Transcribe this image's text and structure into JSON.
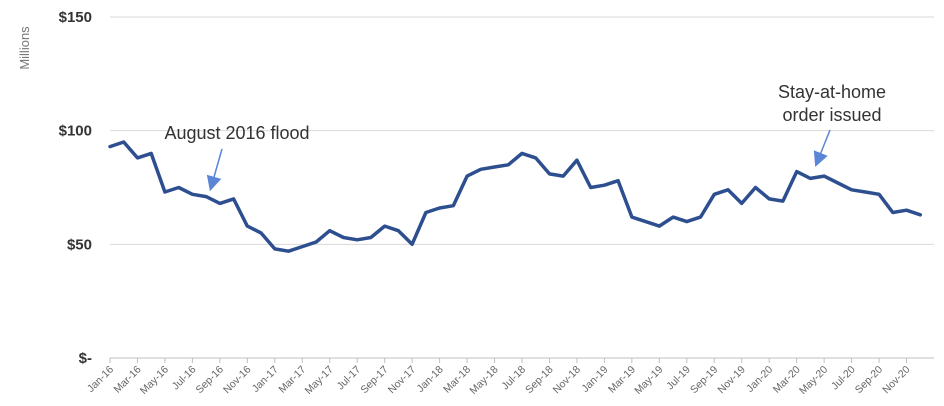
{
  "chart_data": {
    "type": "line",
    "ylabel": "Millions",
    "ylim": [
      0,
      150
    ],
    "y_ticks": [
      {
        "value": 150,
        "label": "$150"
      },
      {
        "value": 100,
        "label": "$100"
      },
      {
        "value": 50,
        "label": "$50"
      },
      {
        "value": 0,
        "label": "$-"
      }
    ],
    "x_tick_labels": [
      "Jan-16",
      "Mar-16",
      "May-16",
      "Jul-16",
      "Sep-16",
      "Nov-16",
      "Jan-17",
      "Mar-17",
      "May-17",
      "Jul-17",
      "Sep-17",
      "Nov-17",
      "Jan-18",
      "Mar-18",
      "May-18",
      "Jul-18",
      "Sep-18",
      "Nov-18",
      "Jan-19",
      "Mar-19",
      "May-19",
      "Jul-19",
      "Sep-19",
      "Nov-19",
      "Jan-20",
      "Mar-20",
      "May-20",
      "Jul-20",
      "Sep-20",
      "Nov-20"
    ],
    "grid": true,
    "series_color": "#2e4f8f",
    "series": [
      {
        "x": [
          "Jan-16",
          "Feb-16",
          "Mar-16",
          "Apr-16",
          "May-16",
          "Jun-16",
          "Jul-16",
          "Aug-16",
          "Sep-16",
          "Oct-16",
          "Nov-16",
          "Dec-16",
          "Jan-17",
          "Feb-17",
          "Mar-17",
          "Apr-17",
          "May-17",
          "Jun-17",
          "Jul-17",
          "Aug-17",
          "Sep-17",
          "Oct-17",
          "Nov-17",
          "Dec-17",
          "Jan-18",
          "Feb-18",
          "Mar-18",
          "Apr-18",
          "May-18",
          "Jun-18",
          "Jul-18",
          "Aug-18",
          "Sep-18",
          "Oct-18",
          "Nov-18",
          "Dec-18",
          "Jan-19",
          "Feb-19",
          "Mar-19",
          "Apr-19",
          "May-19",
          "Jun-19",
          "Jul-19",
          "Aug-19",
          "Sep-19",
          "Oct-19",
          "Nov-19",
          "Dec-19",
          "Jan-20",
          "Feb-20",
          "Mar-20",
          "Apr-20",
          "May-20",
          "Jun-20",
          "Jul-20",
          "Aug-20",
          "Sep-20",
          "Oct-20",
          "Nov-20",
          "Dec-20"
        ],
        "values": [
          93,
          95,
          88,
          90,
          73,
          75,
          72,
          71,
          68,
          70,
          58,
          55,
          48,
          47,
          49,
          51,
          56,
          53,
          52,
          53,
          58,
          56,
          50,
          64,
          66,
          67,
          80,
          83,
          84,
          85,
          90,
          88,
          81,
          80,
          87,
          75,
          76,
          78,
          62,
          60,
          58,
          62,
          60,
          62,
          72,
          74,
          68,
          75,
          70,
          69,
          82,
          79,
          80,
          77,
          74,
          73,
          72,
          64,
          65,
          63
        ]
      }
    ],
    "annotations": [
      {
        "text": "August 2016 flood",
        "x": "Aug-16",
        "y": 71
      },
      {
        "text": "Stay-at-home",
        "text2": "order issued",
        "x": "Mar-20",
        "y": 85
      }
    ]
  }
}
